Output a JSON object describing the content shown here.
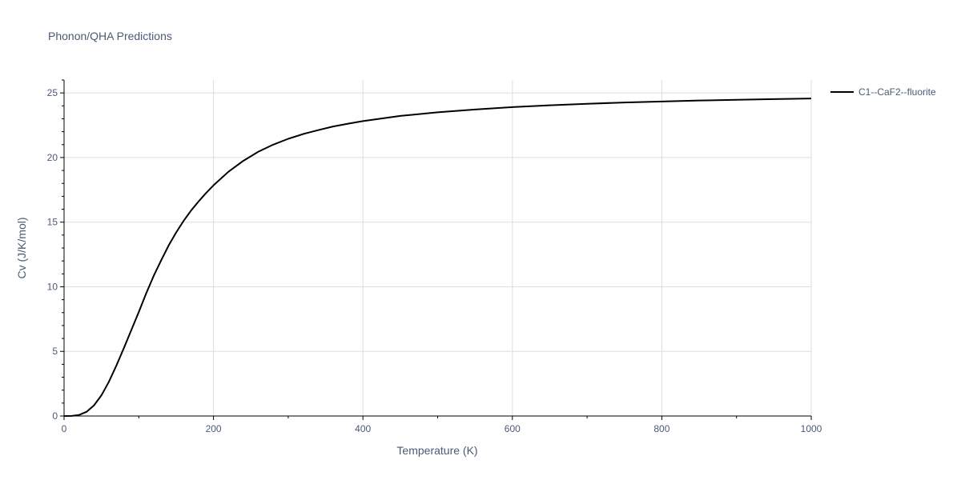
{
  "chart_data": {
    "type": "line",
    "title": "Phonon/QHA Predictions",
    "xlabel": "Temperature (K)",
    "ylabel": "Cv (J/K/mol)",
    "xlim": [
      0,
      1000
    ],
    "ylim": [
      0,
      26
    ],
    "x_ticks": [
      0,
      200,
      400,
      600,
      800,
      1000
    ],
    "x_tick_labels": [
      "0",
      "200",
      "400",
      "600",
      "800",
      "1000"
    ],
    "y_ticks": [
      0,
      5,
      10,
      15,
      20,
      25
    ],
    "y_tick_labels": [
      "0",
      "5",
      "10",
      "15",
      "20",
      "25"
    ],
    "grid": true,
    "legend_position": "top-right-outside",
    "series": [
      {
        "name": "C1--CaF2--fluorite",
        "color": "#000000",
        "x": [
          0,
          10,
          20,
          30,
          40,
          50,
          60,
          70,
          80,
          90,
          100,
          110,
          120,
          130,
          140,
          150,
          160,
          170,
          180,
          190,
          200,
          220,
          240,
          260,
          280,
          300,
          320,
          340,
          360,
          380,
          400,
          450,
          500,
          550,
          600,
          650,
          700,
          750,
          800,
          850,
          900,
          950,
          1000
        ],
        "y": [
          0,
          0.01,
          0.08,
          0.32,
          0.82,
          1.6,
          2.65,
          3.9,
          5.25,
          6.65,
          8.05,
          9.5,
          10.85,
          12.05,
          13.2,
          14.2,
          15.1,
          15.9,
          16.6,
          17.25,
          17.85,
          18.9,
          19.75,
          20.45,
          21.0,
          21.45,
          21.82,
          22.12,
          22.4,
          22.62,
          22.82,
          23.22,
          23.5,
          23.72,
          23.9,
          24.04,
          24.16,
          24.26,
          24.34,
          24.41,
          24.47,
          24.52,
          24.57
        ]
      }
    ]
  }
}
